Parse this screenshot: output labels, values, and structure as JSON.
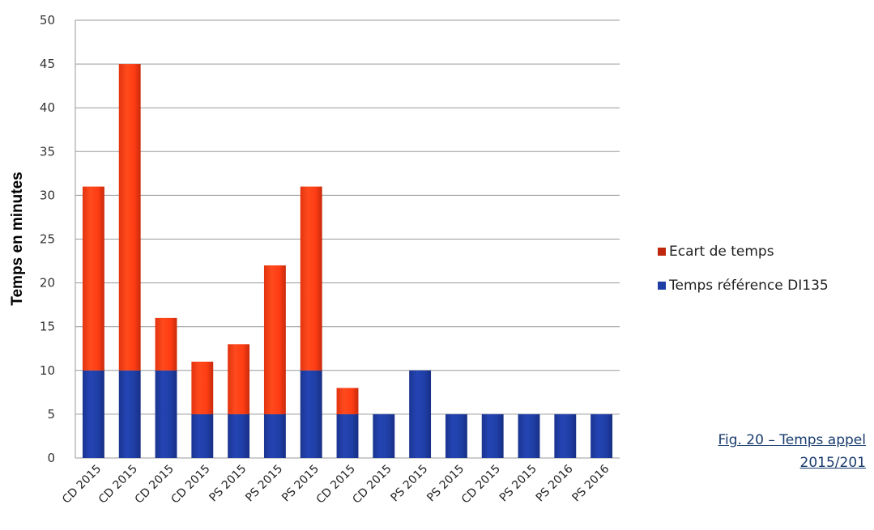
{
  "chart_data": {
    "type": "bar",
    "stacked": true,
    "categories": [
      "CD 2015",
      "CD 2015",
      "CD 2015",
      "CD 2015",
      "PS 2015",
      "PS 2015",
      "PS 2015",
      "CD 2015",
      "CD 2015",
      "PS 2015",
      "PS 2015",
      "CD 2015",
      "PS 2015",
      "PS 2016",
      "PS 2016"
    ],
    "series": [
      {
        "name": "Temps référence DI135",
        "color": "#1f3fa6",
        "values": [
          10,
          10,
          10,
          5,
          5,
          5,
          10,
          5,
          5,
          10,
          5,
          5,
          5,
          5,
          5
        ]
      },
      {
        "name": "Ecart de temps",
        "color": "#ff3d14",
        "values": [
          21,
          35,
          6,
          6,
          8,
          17,
          21,
          3,
          0,
          0,
          0,
          0,
          0,
          0,
          0
        ]
      }
    ],
    "ylabel": "Temps en  minutes",
    "ylim": [
      0,
      50
    ],
    "yticks": [
      "0",
      "5",
      "10",
      "15",
      "20",
      "25",
      "30",
      "35",
      "40",
      "45",
      "50"
    ],
    "grid": true,
    "legend_position": "right"
  },
  "legend": [
    {
      "label": "Ecart de temps",
      "color": "#c0280e"
    },
    {
      "label": "Temps référence DI135",
      "color": "#1f3fa6"
    }
  ],
  "caption": {
    "line1": "Fig. 20 – Temps appel",
    "line2": "2015/201"
  }
}
